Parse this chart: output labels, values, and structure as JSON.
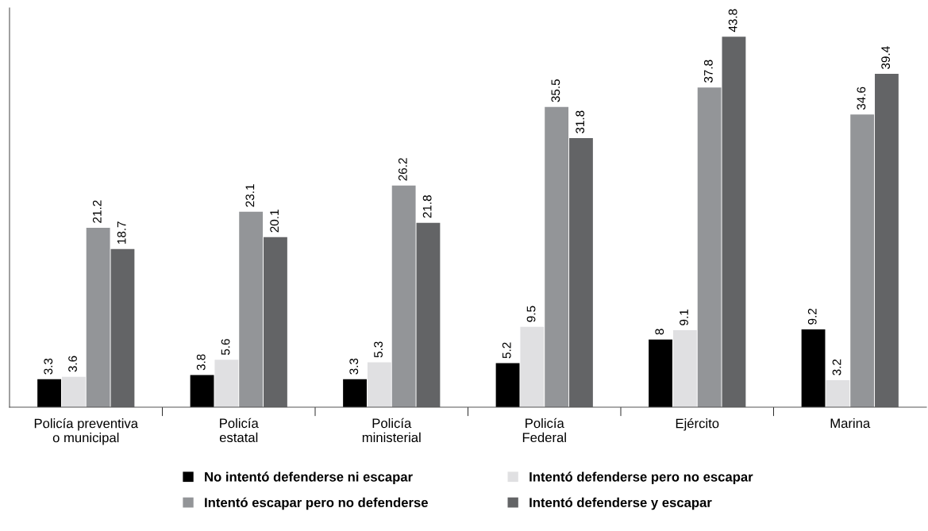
{
  "chart_data": {
    "type": "bar",
    "categories": [
      "Policía preventiva\no municipal",
      "Policía\nestatal",
      "Policía\nministerial",
      "Policía\nFederal",
      "Ejército",
      "Marina"
    ],
    "series": [
      {
        "name": "No intentó defenderse ni escapar",
        "color": "#000000",
        "values": [
          3.3,
          3.8,
          3.3,
          5.2,
          8,
          9.2
        ]
      },
      {
        "name": "Intentó defenderse pero no escapar",
        "color": "#e0e0e2",
        "values": [
          3.6,
          5.6,
          5.3,
          9.5,
          9.1,
          3.2
        ]
      },
      {
        "name": "Intentó escapar pero no defenderse",
        "color": "#939598",
        "values": [
          21.2,
          23.1,
          26.2,
          35.5,
          37.8,
          34.6
        ]
      },
      {
        "name": "Intentó defenderse y escapar",
        "color": "#636466",
        "values": [
          18.7,
          20.1,
          21.8,
          31.8,
          43.8,
          39.4
        ]
      }
    ],
    "ylim": [
      0,
      47.2
    ],
    "data_labels": true,
    "legend": "bottom",
    "grid": false,
    "tick_labels": "x"
  }
}
